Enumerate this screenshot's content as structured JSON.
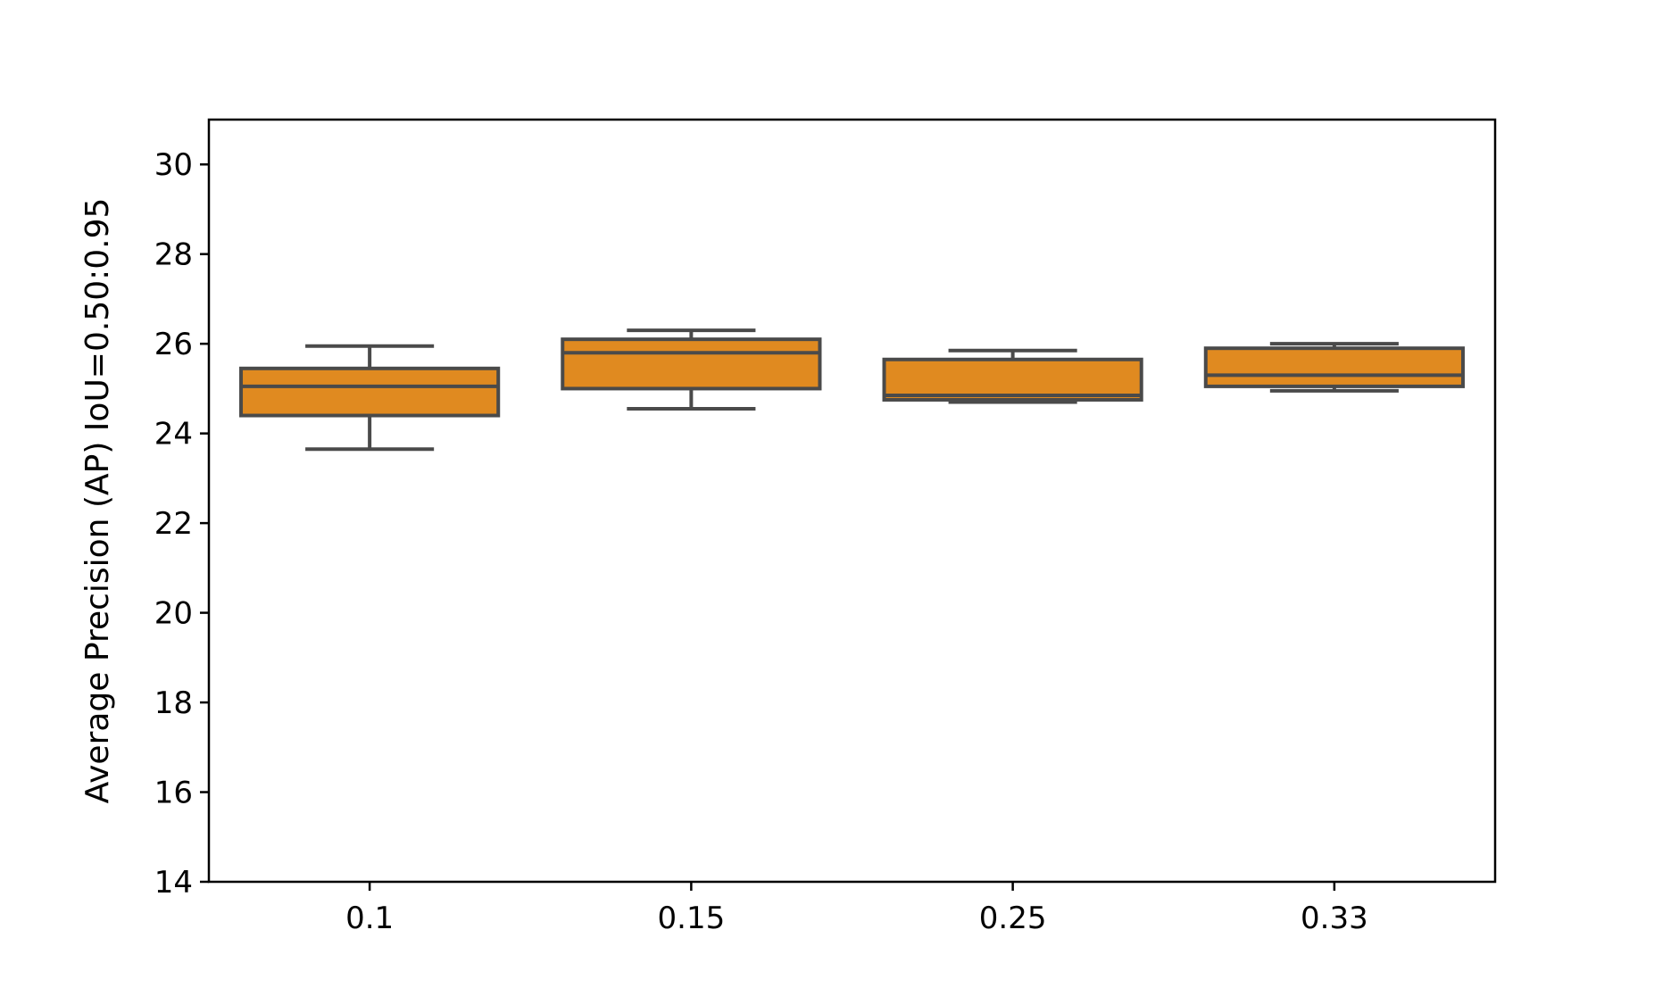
{
  "chart_data": {
    "type": "box",
    "title": "",
    "xlabel": "",
    "ylabel": "Average Precision  (AP) IoU=0.50:0.95",
    "ylim": [
      14,
      31
    ],
    "yticks": [
      "14",
      "16",
      "18",
      "20",
      "22",
      "24",
      "26",
      "28",
      "30"
    ],
    "categories": [
      "0.1",
      "0.15",
      "0.25",
      "0.33"
    ],
    "boxes": [
      {
        "whisker_low": 23.65,
        "q1": 24.4,
        "median": 25.05,
        "q3": 25.45,
        "whisker_high": 25.95
      },
      {
        "whisker_low": 24.55,
        "q1": 25.0,
        "median": 25.8,
        "q3": 26.1,
        "whisker_high": 26.3
      },
      {
        "whisker_low": 24.7,
        "q1": 24.75,
        "median": 24.85,
        "q3": 25.65,
        "whisker_high": 25.85
      },
      {
        "whisker_low": 24.95,
        "q1": 25.05,
        "median": 25.3,
        "q3": 25.9,
        "whisker_high": 26.0
      }
    ],
    "colors": {
      "box_fill": "#e08a20",
      "box_edge": "#4a4a4a",
      "axis": "#000000"
    },
    "grid": false,
    "legend": "none"
  }
}
